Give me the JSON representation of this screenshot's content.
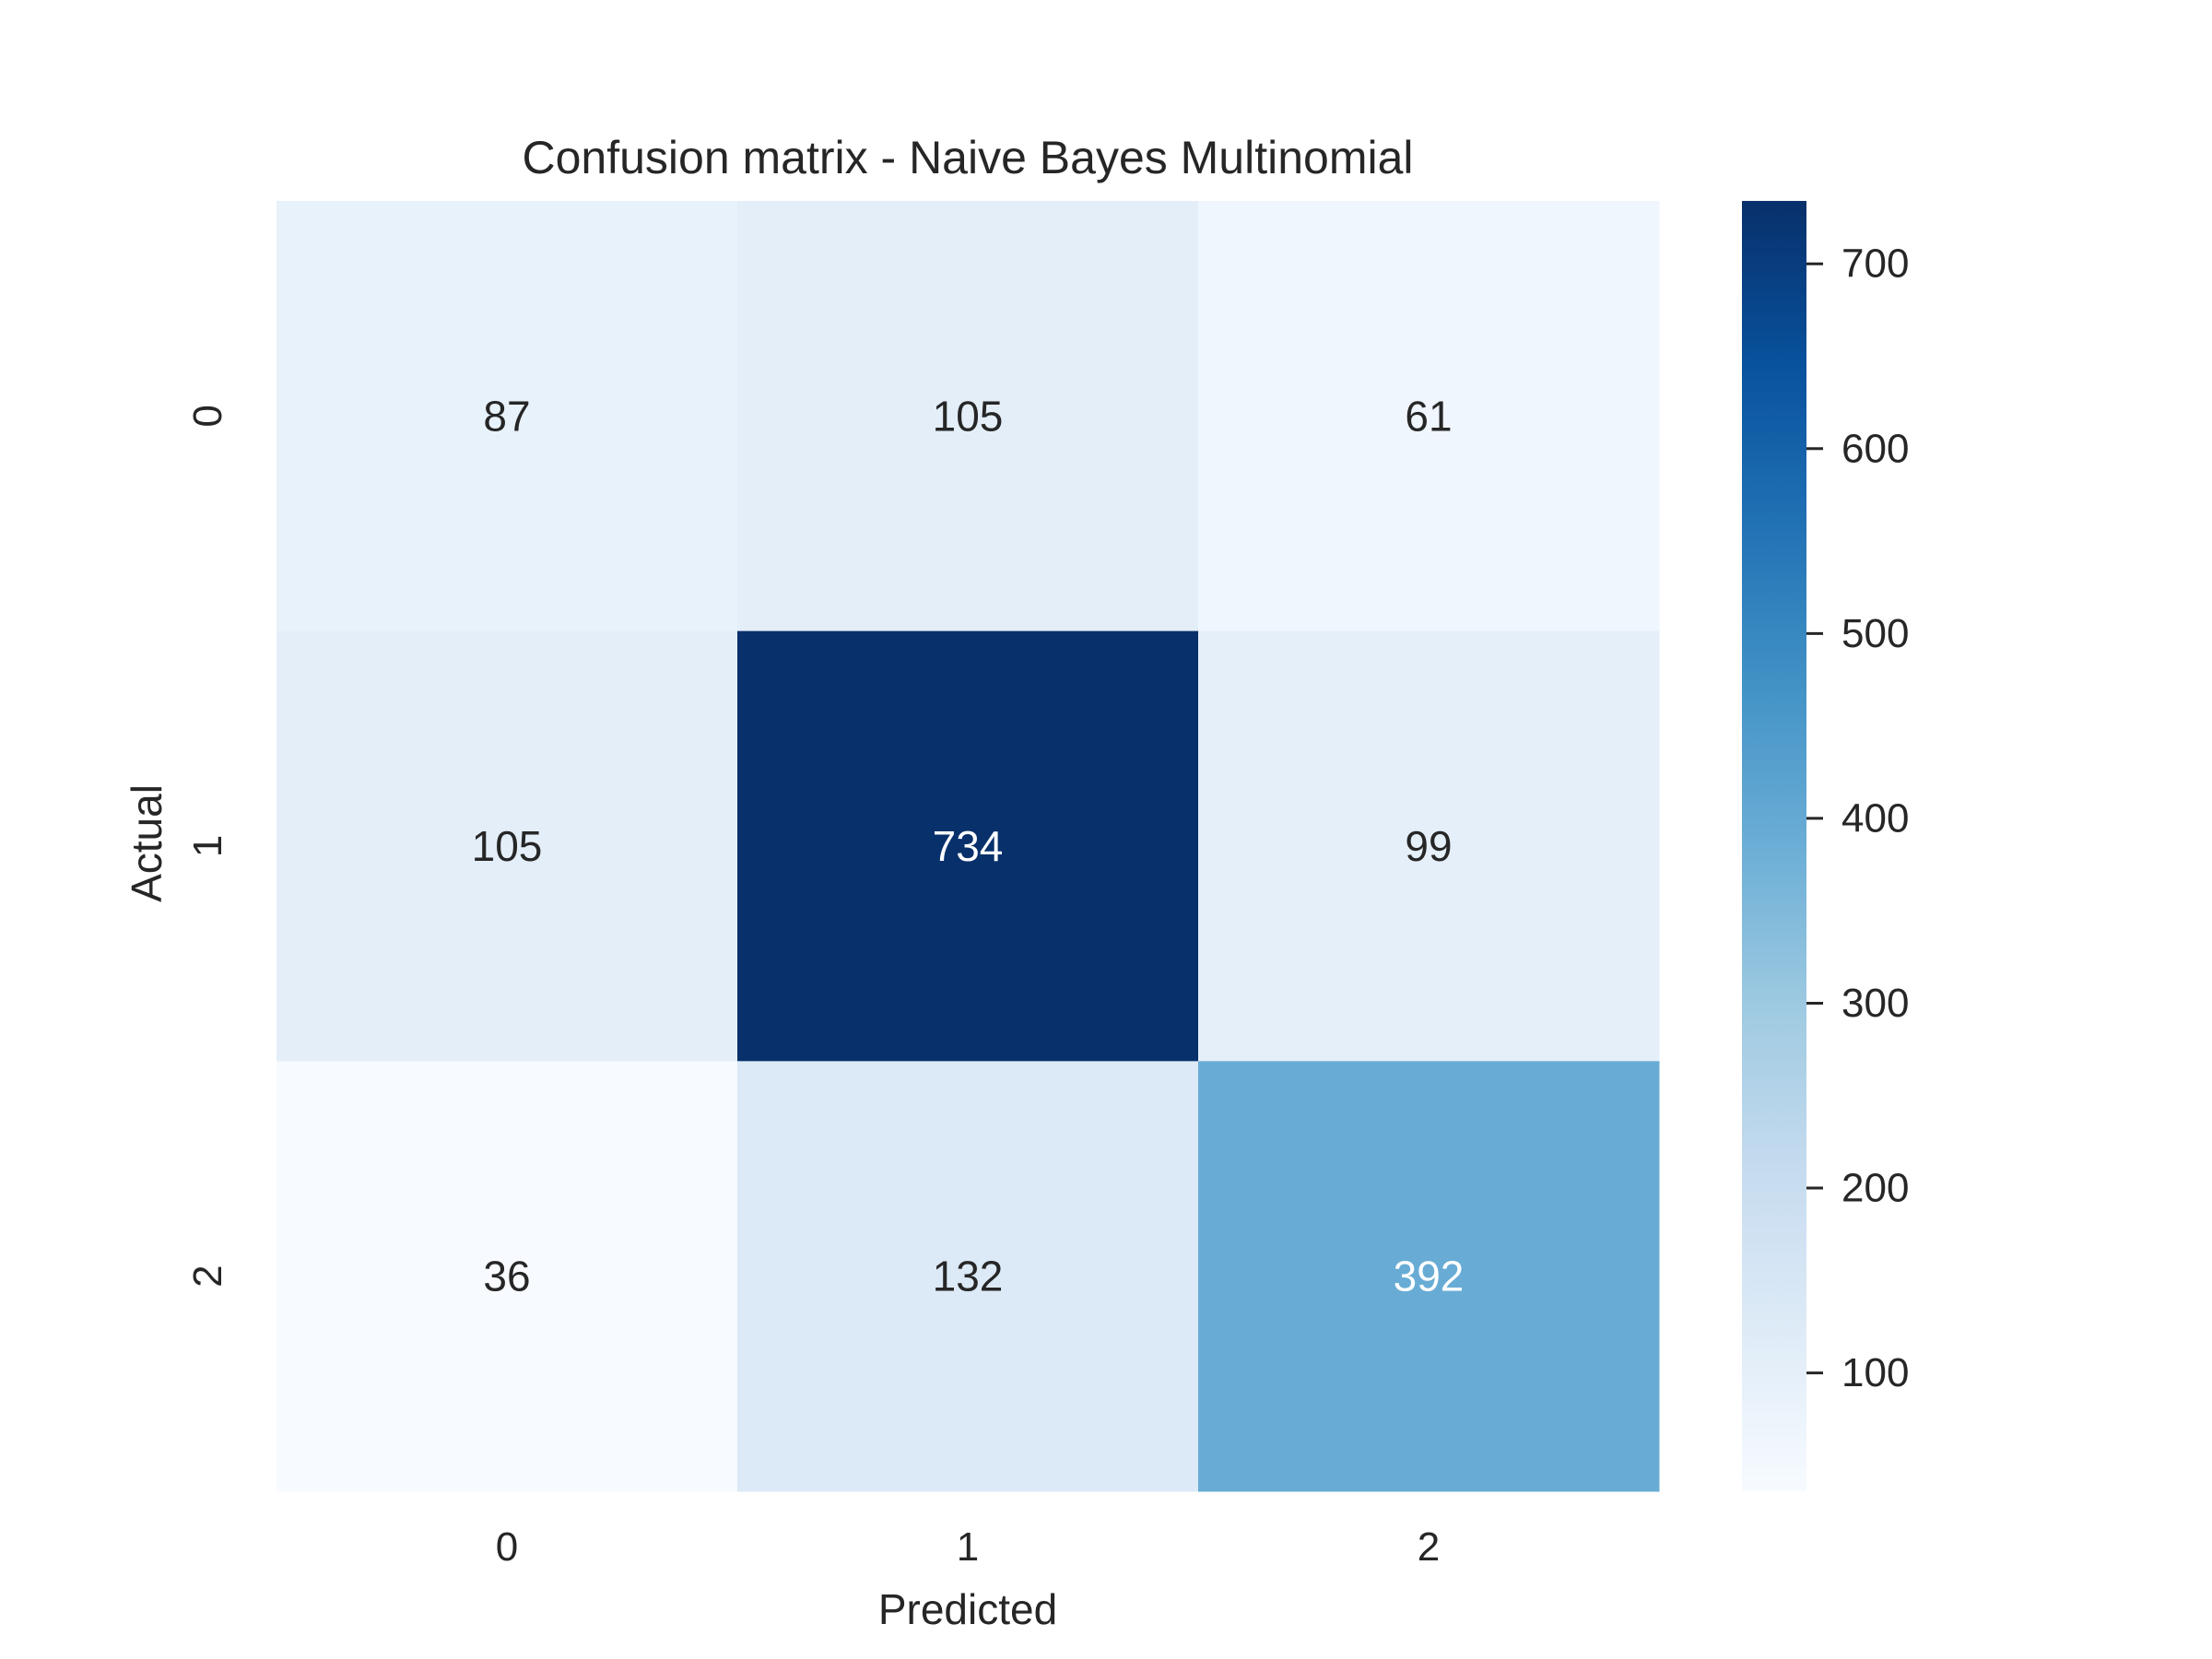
{
  "chart_data": {
    "type": "heatmap",
    "title": "Confusion matrix - Naive Bayes Multinomial",
    "xlabel": "Predicted",
    "ylabel": "Actual",
    "x_categories": [
      "0",
      "1",
      "2"
    ],
    "y_categories": [
      "0",
      "1",
      "2"
    ],
    "values": [
      [
        87,
        105,
        61
      ],
      [
        105,
        734,
        99
      ],
      [
        36,
        132,
        392
      ]
    ],
    "colormap": "Blues",
    "vmin": 36,
    "vmax": 734,
    "colorbar": {
      "ticks": [
        100,
        200,
        300,
        400,
        500,
        600,
        700
      ],
      "tick_labels": [
        "100",
        "200",
        "300",
        "400",
        "500",
        "600",
        "700"
      ]
    },
    "grid": false,
    "colors": {
      "low": "#f7fbff",
      "high": "#08306b",
      "text_dark": "#262626",
      "text_light": "#ffffff"
    }
  }
}
